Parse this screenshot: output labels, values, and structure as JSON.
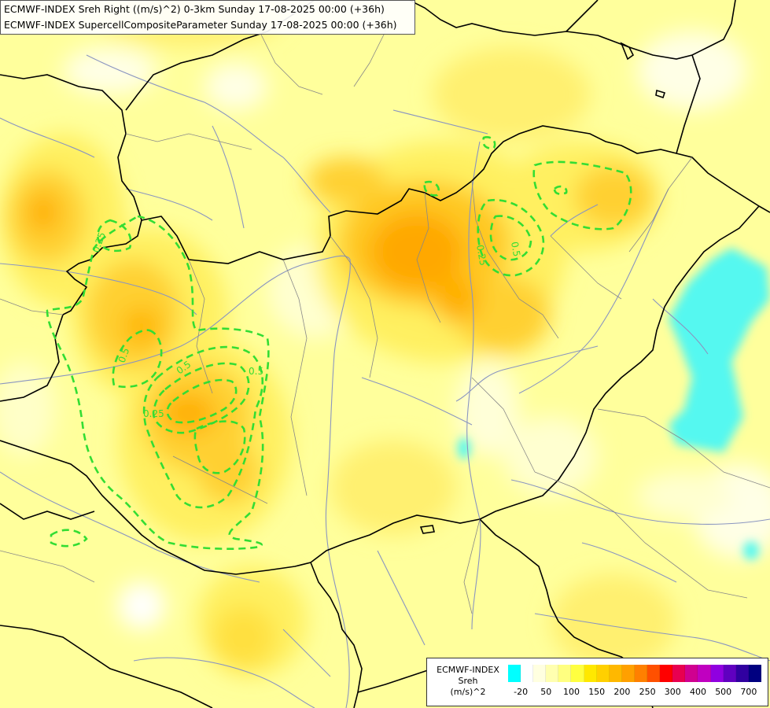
{
  "title": {
    "line1": "ECMWF-INDEX Sreh Right ((m/s)^2) 0-3km Sunday 17-08-2025 00:00 (+36h)",
    "line2": "ECMWF-INDEX SupercellCompositeParameter Sunday 17-08-2025 00:00 (+36h)"
  },
  "legend": {
    "line1": "ECMWF-INDEX",
    "line2": "Sreh",
    "line3": "(m/s)^2",
    "colors": [
      "#00ffff",
      "#ffffff",
      "#ffffe0",
      "#ffffb0",
      "#ffff80",
      "#ffff40",
      "#ffe800",
      "#ffd000",
      "#ffb800",
      "#ffa000",
      "#ff8000",
      "#ff5000",
      "#ff0000",
      "#e80050",
      "#d00090",
      "#c000c0",
      "#9000e0",
      "#6000c0",
      "#3000a0",
      "#000080"
    ],
    "ticks": [
      "-20",
      "50",
      "100",
      "150",
      "200",
      "250",
      "300",
      "400",
      "500",
      "700"
    ]
  },
  "contours": {
    "color": "#33dd33",
    "labels": [
      "0.25",
      "0.5",
      "0.5",
      "0.5",
      "0.25",
      "0.5",
      "0.25"
    ]
  }
}
